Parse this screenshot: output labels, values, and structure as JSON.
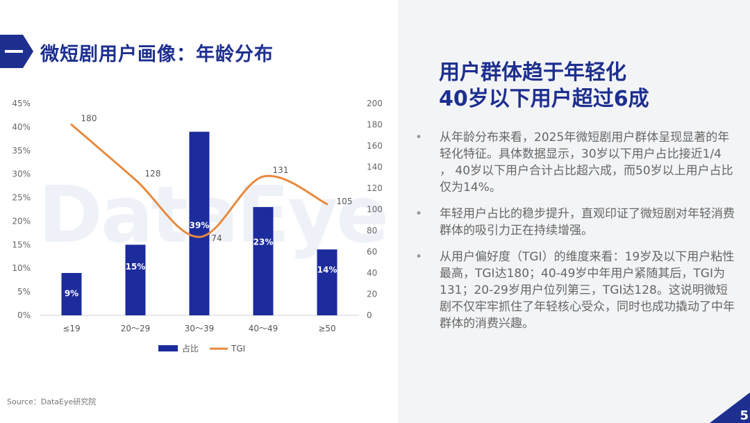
{
  "title": "微短剧用户画像：年龄分布",
  "title_prefix": "一",
  "watermark": "DataEye",
  "source": "Source：DataEye研究院",
  "headline": [
    "用户群体趋于年轻化",
    "40岁以下用户超过6成"
  ],
  "bullets": [
    "从年龄分布来看，2025年微短剧用户群体呈现显著的年轻化特征。具体数据显示，30岁以下用户占比接近1/4 ， 40岁以下用户合计占比超六成，而50岁以上用户占比仅为14%。",
    "年轻用户占比的稳步提升，直观印证了微短剧对年轻消费群体的吸引力正在持续增强。",
    "从用户偏好度（TGI）的维度来看：19岁及以下用户粘性最高，TGI达180；40-49岁中年用户紧随其后，TGI为131；20-29岁用户位列第三，TGI达128。这说明微短剧不仅牢牢抓住了年轻核心受众，同时也成功撬动了中年群体的消费兴趣。"
  ],
  "bullet_symbol": "•",
  "page_number": "5",
  "colors": {
    "brand": "#1d2f8f",
    "bar": "#1c2c9c",
    "line": "#e8893d"
  },
  "chart_data": {
    "type": "bar",
    "categories": [
      "≤19",
      "20～29",
      "30～39",
      "40～49",
      "≥50"
    ],
    "series": [
      {
        "name": "占比",
        "type": "bar",
        "axis": "left",
        "values": [
          9,
          15,
          39,
          23,
          14
        ],
        "labels": [
          "9%",
          "15%",
          "39%",
          "23%",
          "14%"
        ],
        "color": "#1c2c9c"
      },
      {
        "name": "TGI",
        "type": "line",
        "axis": "right",
        "values": [
          180,
          128,
          74,
          131,
          105
        ],
        "labels": [
          "180",
          "128",
          "74",
          "131",
          "105"
        ],
        "color": "#e8893d"
      }
    ],
    "ylim_left": [
      0,
      45
    ],
    "yticks_left": [
      "0%",
      "5%",
      "10%",
      "15%",
      "20%",
      "25%",
      "30%",
      "35%",
      "40%",
      "45%"
    ],
    "ylim_right": [
      0,
      200
    ],
    "yticks_right": [
      "0",
      "20",
      "40",
      "60",
      "80",
      "100",
      "120",
      "140",
      "160",
      "180",
      "200"
    ],
    "grid": false,
    "legend": "bottom"
  }
}
